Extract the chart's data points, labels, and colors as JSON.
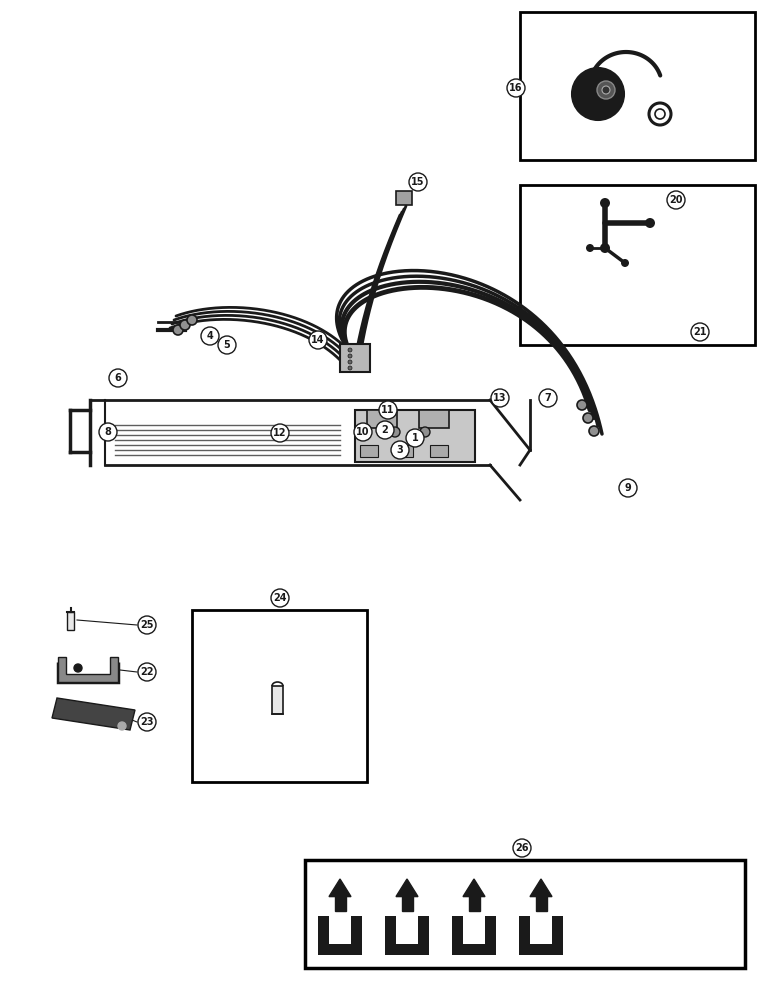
{
  "bg_color": "#ffffff",
  "line_color": "#1a1a1a",
  "box_color": "#000000",
  "fig_width": 7.72,
  "fig_height": 10.0
}
